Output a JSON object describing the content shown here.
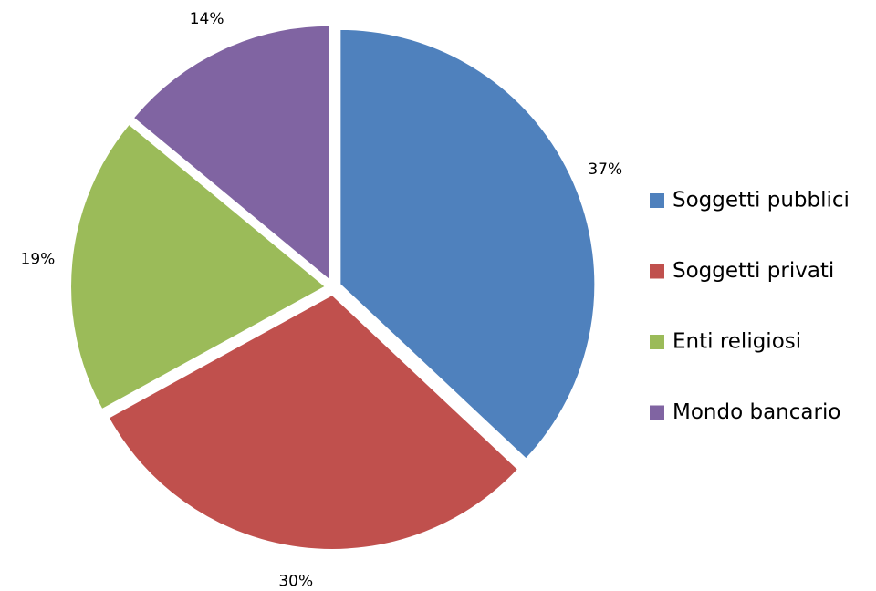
{
  "chart_data": {
    "type": "pie",
    "categories": [
      "Soggetti pubblici",
      "Soggetti privati",
      "Enti religiosi",
      "Mondo bancario"
    ],
    "values": [
      37,
      30,
      19,
      14
    ],
    "value_labels": [
      "37%",
      "30%",
      "19%",
      "14%"
    ],
    "colors": [
      "#4f81bd",
      "#c0504d",
      "#9bbb59",
      "#8064a2"
    ],
    "legend": "right"
  }
}
